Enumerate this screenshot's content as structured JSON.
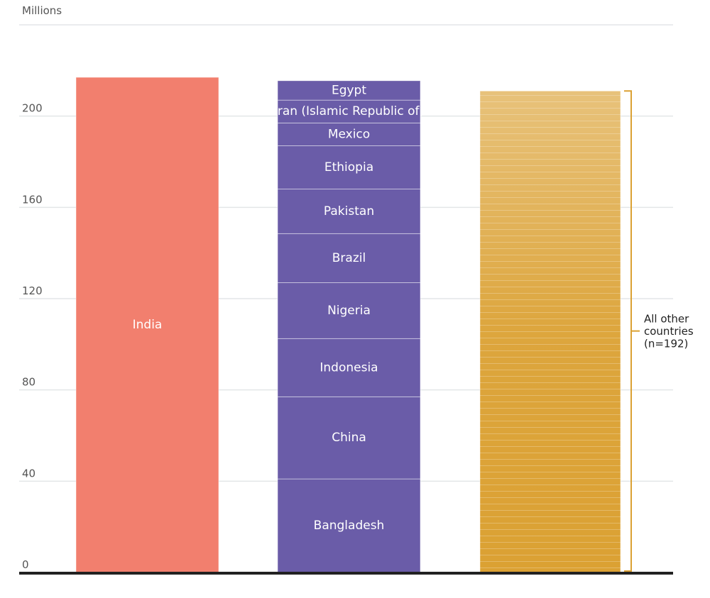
{
  "chart_data": {
    "type": "stacked_bar",
    "y_label": "Millions",
    "ylim": [
      0,
      240
    ],
    "yticks": [
      0,
      40,
      80,
      120,
      160,
      200
    ],
    "grid": true,
    "bars": [
      {
        "color": "#f27f6e",
        "segments": [
          {
            "label": "India",
            "value": 217
          }
        ]
      },
      {
        "color": "#6a5ca8",
        "segments": [
          {
            "label": "Bangladesh",
            "value": 41
          },
          {
            "label": "China",
            "value": 36
          },
          {
            "label": "Indonesia",
            "value": 25.5
          },
          {
            "label": "Nigeria",
            "value": 24.5
          },
          {
            "label": "Brazil",
            "value": 21.5
          },
          {
            "label": "Pakistan",
            "value": 19.5
          },
          {
            "label": "Ethiopia",
            "value": 19
          },
          {
            "label": "Mexico",
            "value": 10
          },
          {
            "label": "Iran (Islamic Republic of)",
            "value": 10
          },
          {
            "label": "Egypt",
            "value": 8.5
          }
        ]
      },
      {
        "color": "#dba133",
        "segments": [
          {
            "value": 211
          }
        ],
        "annotation": [
          "All other",
          "countries",
          "(n=192)"
        ]
      }
    ]
  }
}
